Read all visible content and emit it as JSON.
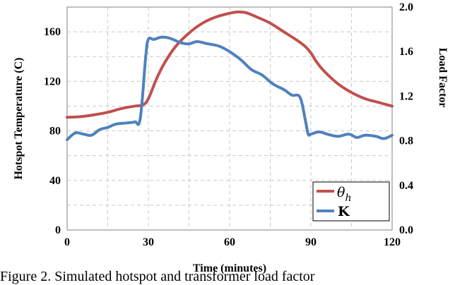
{
  "chart_data": {
    "type": "line",
    "xlabel": "Time (minutes)",
    "ylabel_left": "Hotspot Temperature (C)",
    "ylabel_right": "Load Factor",
    "xlim": [
      0,
      120
    ],
    "ylim_left": [
      0,
      180
    ],
    "ylim_right": [
      0,
      2.0
    ],
    "x_ticks": [
      "0",
      "30",
      "60",
      "90",
      "120"
    ],
    "y_ticks_left": [
      "0",
      "40",
      "80",
      "120",
      "160"
    ],
    "y_ticks_right": [
      "0.0",
      "0.4",
      "0.8",
      "1.2",
      "1.6",
      "2.0"
    ],
    "grid": "dashed",
    "legend_position": "bottom-right",
    "series": [
      {
        "name": "θh",
        "axis": "left",
        "color": "#c0504d",
        "points": [
          [
            0,
            91
          ],
          [
            5,
            91.5
          ],
          [
            10,
            93
          ],
          [
            15,
            95
          ],
          [
            20,
            98
          ],
          [
            25,
            100
          ],
          [
            28,
            101
          ],
          [
            30,
            106
          ],
          [
            33,
            122
          ],
          [
            36,
            135
          ],
          [
            40,
            148
          ],
          [
            45,
            159
          ],
          [
            50,
            167
          ],
          [
            55,
            172
          ],
          [
            60,
            175
          ],
          [
            63,
            176
          ],
          [
            66,
            175.5
          ],
          [
            70,
            172
          ],
          [
            75,
            167
          ],
          [
            80,
            160
          ],
          [
            85,
            153
          ],
          [
            88,
            148
          ],
          [
            90,
            143
          ],
          [
            92,
            136
          ],
          [
            95,
            128
          ],
          [
            100,
            118
          ],
          [
            105,
            111
          ],
          [
            110,
            106
          ],
          [
            115,
            103
          ],
          [
            120,
            100
          ]
        ]
      },
      {
        "name": "K",
        "axis": "right",
        "color": "#4f81bd",
        "points": [
          [
            0,
            0.81
          ],
          [
            3,
            0.87
          ],
          [
            6,
            0.86
          ],
          [
            9,
            0.85
          ],
          [
            12,
            0.9
          ],
          [
            15,
            0.92
          ],
          [
            18,
            0.95
          ],
          [
            22,
            0.96
          ],
          [
            25,
            0.97
          ],
          [
            27,
            1.0
          ],
          [
            29,
            1.55
          ],
          [
            30,
            1.71
          ],
          [
            32,
            1.71
          ],
          [
            35,
            1.73
          ],
          [
            38,
            1.72
          ],
          [
            42,
            1.68
          ],
          [
            45,
            1.67
          ],
          [
            48,
            1.69
          ],
          [
            52,
            1.67
          ],
          [
            56,
            1.65
          ],
          [
            60,
            1.6
          ],
          [
            64,
            1.53
          ],
          [
            68,
            1.44
          ],
          [
            72,
            1.39
          ],
          [
            76,
            1.31
          ],
          [
            80,
            1.26
          ],
          [
            83,
            1.21
          ],
          [
            86,
            1.19
          ],
          [
            88,
            0.98
          ],
          [
            89,
            0.86
          ],
          [
            90,
            0.86
          ],
          [
            93,
            0.88
          ],
          [
            96,
            0.86
          ],
          [
            100,
            0.84
          ],
          [
            104,
            0.86
          ],
          [
            107,
            0.83
          ],
          [
            110,
            0.85
          ],
          [
            114,
            0.84
          ],
          [
            117,
            0.82
          ],
          [
            120,
            0.85
          ]
        ]
      }
    ]
  },
  "legend": {
    "theta_main": "θ",
    "theta_sub": "h",
    "k_label": "K"
  },
  "caption": "Figure 2.  Simulated hotspot and transformer load factor"
}
